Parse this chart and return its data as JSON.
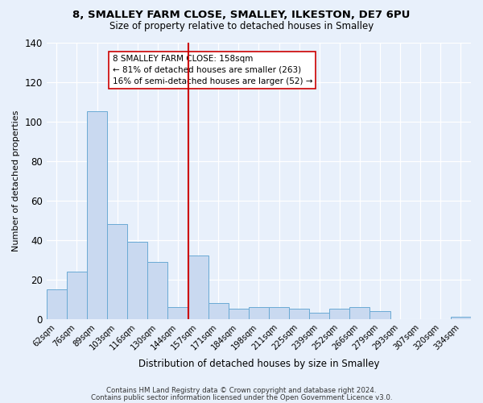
{
  "title": "8, SMALLEY FARM CLOSE, SMALLEY, ILKESTON, DE7 6PU",
  "subtitle": "Size of property relative to detached houses in Smalley",
  "xlabel": "Distribution of detached houses by size in Smalley",
  "ylabel": "Number of detached properties",
  "bar_labels": [
    "62sqm",
    "76sqm",
    "89sqm",
    "103sqm",
    "116sqm",
    "130sqm",
    "144sqm",
    "157sqm",
    "171sqm",
    "184sqm",
    "198sqm",
    "211sqm",
    "225sqm",
    "239sqm",
    "252sqm",
    "266sqm",
    "279sqm",
    "293sqm",
    "307sqm",
    "320sqm",
    "334sqm"
  ],
  "bar_heights": [
    15,
    24,
    105,
    48,
    39,
    29,
    6,
    32,
    8,
    5,
    6,
    6,
    5,
    3,
    5,
    6,
    4,
    0,
    0,
    0,
    1
  ],
  "bar_color": "#c9d9f0",
  "bar_edge_color": "#6aaad4",
  "vline_color": "#cc0000",
  "annotation_title": "8 SMALLEY FARM CLOSE: 158sqm",
  "annotation_line1": "← 81% of detached houses are smaller (263)",
  "annotation_line2": "16% of semi-detached houses are larger (52) →",
  "annotation_box_color": "#ffffff",
  "annotation_box_edge": "#cc0000",
  "ylim": [
    0,
    140
  ],
  "footer1": "Contains HM Land Registry data © Crown copyright and database right 2024.",
  "footer2": "Contains public sector information licensed under the Open Government Licence v3.0.",
  "background_color": "#e8f0fb",
  "plot_bg_color": "#e8f0fb"
}
